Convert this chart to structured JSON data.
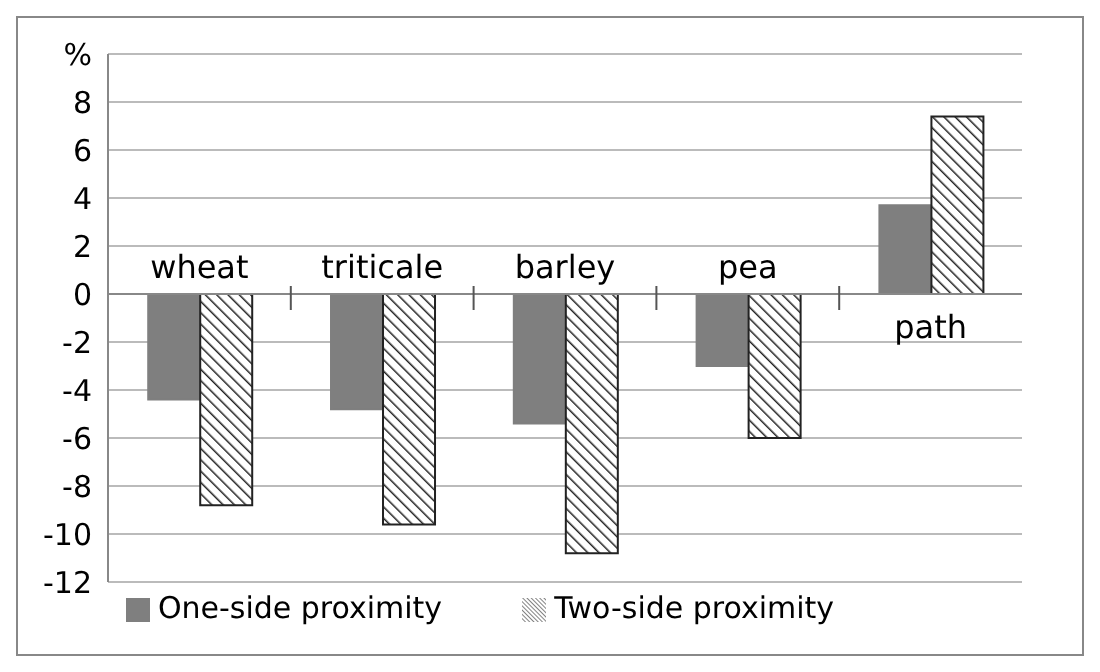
{
  "chart_data": {
    "type": "bar",
    "categories": [
      "wheat",
      "triticale",
      "barley",
      "pea",
      "path"
    ],
    "series": [
      {
        "name": "One-side proximity",
        "color": "#7f7f7f",
        "values": [
          -4.4,
          -4.8,
          -5.4,
          -3.0,
          3.7
        ]
      },
      {
        "name": "Two-side proximity",
        "color": "#222222",
        "values": [
          -8.8,
          -9.6,
          -10.8,
          -6.0,
          7.4
        ]
      }
    ],
    "ylim": [
      -12,
      10
    ],
    "yticks": [
      -12,
      -10,
      -8,
      -6,
      -4,
      -2,
      0,
      2,
      4,
      6,
      8,
      {
        "value": 10,
        "label": "%"
      }
    ],
    "grid": "y",
    "legend": "bottom"
  }
}
